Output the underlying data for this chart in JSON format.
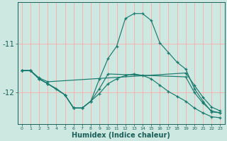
{
  "xlabel": "Humidex (Indice chaleur)",
  "bg_color": "#cce8e0",
  "line_color": "#1a7a6e",
  "grid_color_v": "#ffaaaa",
  "grid_color_h": "#ffaaaa",
  "text_color": "#1a5f58",
  "xlim": [
    -0.5,
    23.5
  ],
  "ylim": [
    -12.65,
    -10.15
  ],
  "yticks": [
    -12,
    -11
  ],
  "xticks": [
    0,
    1,
    2,
    3,
    4,
    5,
    6,
    7,
    8,
    9,
    10,
    11,
    12,
    13,
    14,
    15,
    16,
    17,
    18,
    19,
    20,
    21,
    22,
    23
  ],
  "lines": [
    {
      "x": [
        0,
        1,
        2,
        3,
        19,
        20,
        21,
        22,
        23
      ],
      "y": [
        -11.55,
        -11.55,
        -11.7,
        -11.78,
        -11.6,
        -11.85,
        -12.1,
        -12.3,
        -12.38
      ]
    },
    {
      "x": [
        0,
        1,
        2,
        3,
        5,
        6,
        7,
        8,
        9,
        10,
        19,
        20,
        21,
        22,
        23
      ],
      "y": [
        -11.55,
        -11.55,
        -11.72,
        -11.82,
        -12.05,
        -12.32,
        -12.32,
        -12.18,
        -11.92,
        -11.62,
        -11.68,
        -12.0,
        -12.22,
        -12.38,
        -12.42
      ]
    },
    {
      "x": [
        0,
        1,
        2,
        3,
        5,
        6,
        7,
        8,
        9,
        10,
        11,
        12,
        13,
        14,
        15,
        16,
        17,
        18,
        19,
        20,
        21,
        22,
        23
      ],
      "y": [
        -11.55,
        -11.55,
        -11.72,
        -11.82,
        -12.05,
        -12.32,
        -12.32,
        -12.18,
        -11.72,
        -11.3,
        -11.05,
        -10.48,
        -10.38,
        -10.38,
        -10.52,
        -10.98,
        -11.18,
        -11.38,
        -11.52,
        -11.92,
        -12.18,
        -12.4,
        -12.42
      ]
    },
    {
      "x": [
        0,
        1,
        2,
        3,
        4,
        5,
        6,
        7,
        8,
        9,
        10,
        11,
        12,
        13,
        14,
        15,
        16,
        17,
        18,
        19,
        20,
        21,
        22,
        23
      ],
      "y": [
        -11.55,
        -11.55,
        -11.72,
        -11.82,
        -11.92,
        -12.05,
        -12.32,
        -12.32,
        -12.18,
        -12.02,
        -11.82,
        -11.72,
        -11.65,
        -11.62,
        -11.65,
        -11.72,
        -11.85,
        -11.98,
        -12.08,
        -12.18,
        -12.32,
        -12.42,
        -12.5,
        -12.52
      ]
    }
  ]
}
